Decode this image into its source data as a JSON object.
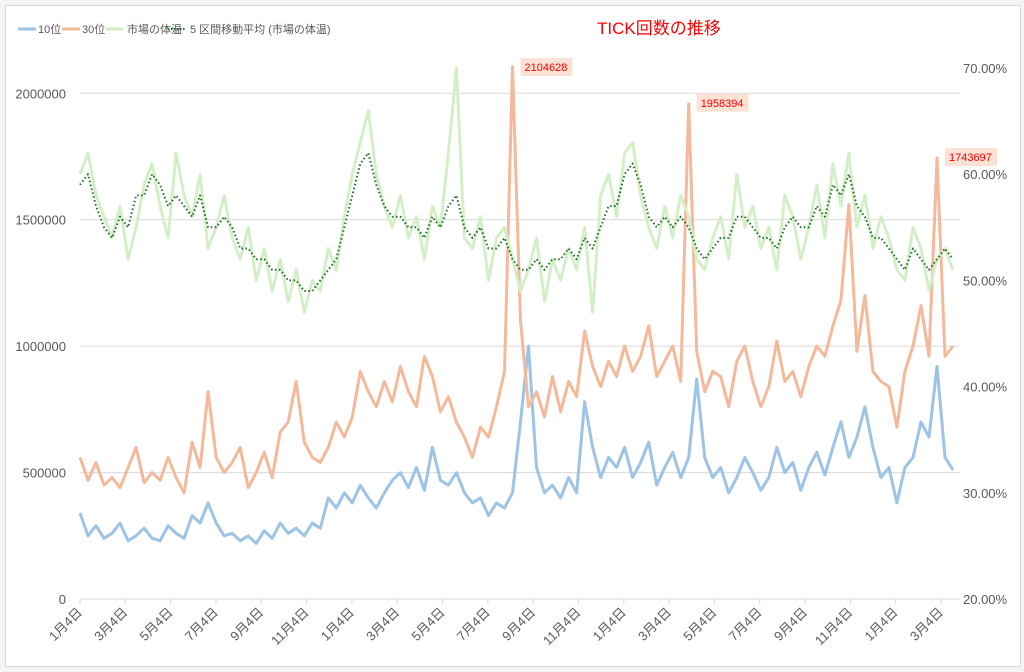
{
  "chart_data": {
    "type": "line",
    "title": "TICK回数の推移",
    "title_color": "#ff0000",
    "legend_position": "top-left",
    "legend": [
      "10位",
      "30位",
      "市場の体温",
      "5 区間移動平均 (市場の体温)"
    ],
    "x_tick_labels": [
      "1月4日",
      "3月4日",
      "5月4日",
      "7月4日",
      "9月4日",
      "11月4日",
      "1月4日",
      "3月4日",
      "5月4日",
      "7月4日",
      "9月4日",
      "11月4日",
      "1月4日",
      "3月4日",
      "5月4日",
      "7月4日",
      "9月4日",
      "11月4日",
      "1月4日",
      "3月4日"
    ],
    "y_left": {
      "min": 0,
      "max": 2100000,
      "ticks": [
        0,
        500000,
        1000000,
        1500000,
        2000000
      ],
      "tick_labels": [
        "0",
        "500000",
        "1000000",
        "1500000",
        "2000000"
      ]
    },
    "y_right": {
      "min": 20,
      "max": 70,
      "ticks": [
        20,
        30,
        40,
        50,
        60,
        70
      ],
      "tick_labels": [
        "20.00%",
        "30.00%",
        "40.00%",
        "50.00%",
        "60.00%",
        "70.00%"
      ]
    },
    "grid": true,
    "series": [
      {
        "name": "10位",
        "axis": "left",
        "color": "#9dc3e6",
        "unit": "thousands",
        "values": [
          340,
          250,
          290,
          240,
          260,
          300,
          230,
          250,
          280,
          240,
          230,
          290,
          260,
          240,
          330,
          300,
          380,
          300,
          250,
          260,
          230,
          250,
          220,
          270,
          240,
          300,
          260,
          280,
          250,
          300,
          280,
          400,
          360,
          420,
          380,
          450,
          400,
          360,
          420,
          470,
          500,
          440,
          520,
          430,
          600,
          470,
          450,
          500,
          420,
          380,
          400,
          330,
          380,
          360,
          420,
          700,
          1000,
          520,
          420,
          450,
          400,
          480,
          420,
          780,
          600,
          480,
          560,
          520,
          600,
          480,
          540,
          620,
          450,
          520,
          580,
          480,
          560,
          870,
          560,
          480,
          520,
          420,
          480,
          560,
          500,
          430,
          480,
          600,
          500,
          540,
          430,
          520,
          580,
          490,
          600,
          700,
          560,
          640,
          760,
          600,
          480,
          520,
          380,
          520,
          560,
          700,
          640,
          920,
          560,
          510
        ]
      },
      {
        "name": "30位",
        "axis": "left",
        "color": "#f4b99a",
        "unit": "thousands",
        "values": [
          560,
          470,
          540,
          450,
          480,
          440,
          520,
          600,
          460,
          500,
          470,
          560,
          480,
          420,
          620,
          520,
          820,
          560,
          500,
          540,
          600,
          440,
          500,
          580,
          480,
          660,
          700,
          860,
          620,
          560,
          540,
          600,
          700,
          640,
          720,
          900,
          820,
          760,
          860,
          780,
          920,
          820,
          760,
          960,
          880,
          740,
          800,
          700,
          640,
          560,
          680,
          640,
          760,
          900,
          2104.628,
          1100,
          760,
          820,
          720,
          880,
          740,
          860,
          800,
          1060,
          920,
          840,
          940,
          880,
          1000,
          900,
          960,
          1080,
          880,
          940,
          1000,
          860,
          1958.394,
          980,
          820,
          900,
          880,
          760,
          940,
          1000,
          860,
          760,
          840,
          1020,
          860,
          900,
          800,
          920,
          1000,
          960,
          1080,
          1180,
          1560,
          980,
          1200,
          900,
          860,
          840,
          680,
          900,
          1000,
          1160,
          960,
          1743.697,
          960,
          1000
        ]
      },
      {
        "name": "市場の体温",
        "axis": "right",
        "color": "#d4efc8",
        "unit": "percent",
        "values": [
          60,
          62,
          58,
          56,
          54,
          57,
          52,
          55,
          59,
          61,
          57,
          54,
          62,
          58,
          56,
          60,
          53,
          55,
          58,
          54,
          52,
          55,
          50,
          53,
          49,
          52,
          48,
          51,
          47,
          50,
          49,
          53,
          51,
          56,
          60,
          63,
          66,
          60,
          57,
          55,
          58,
          54,
          56,
          52,
          57,
          55,
          62,
          70,
          54,
          53,
          56,
          50,
          54,
          55,
          52,
          49,
          51,
          54,
          48,
          52,
          50,
          53,
          51,
          55,
          47,
          58,
          60,
          56,
          62,
          63,
          58,
          55,
          53,
          57,
          54,
          58,
          56,
          52,
          51,
          54,
          56,
          52,
          60,
          55,
          57,
          53,
          55,
          51,
          58,
          56,
          52,
          55,
          59,
          54,
          61,
          57,
          62,
          55,
          58,
          53,
          56,
          54,
          51,
          50,
          55,
          53,
          49,
          52,
          53,
          51
        ]
      },
      {
        "name": "5 区間移動平均 (市場の体温)",
        "axis": "right",
        "color": "#1f6e24",
        "unit": "percent",
        "values": [
          59,
          60,
          57,
          55,
          54,
          56,
          55,
          58,
          58,
          60,
          59,
          57,
          58,
          57,
          56,
          58,
          55,
          55,
          56,
          55,
          53,
          53,
          52,
          52,
          51,
          51,
          50,
          50,
          49,
          49,
          50,
          51,
          52,
          55,
          58,
          61,
          62,
          59,
          57,
          56,
          56,
          55,
          55,
          54,
          56,
          55,
          57,
          58,
          55,
          54,
          55,
          53,
          53,
          54,
          52,
          51,
          51,
          52,
          51,
          52,
          52,
          53,
          52,
          54,
          53,
          55,
          57,
          57,
          60,
          61,
          59,
          56,
          55,
          56,
          55,
          56,
          55,
          53,
          52,
          53,
          54,
          54,
          56,
          56,
          55,
          54,
          54,
          53,
          55,
          56,
          55,
          55,
          57,
          56,
          59,
          58,
          60,
          57,
          56,
          54,
          54,
          53,
          52,
          51,
          53,
          52,
          51,
          52,
          53,
          52
        ]
      }
    ],
    "data_labels": [
      {
        "series": "30位",
        "index": 54,
        "text": "2104628"
      },
      {
        "series": "30位",
        "index": 76,
        "text": "1958394"
      },
      {
        "series": "30位",
        "index": 107,
        "text": "1743697"
      }
    ],
    "data_label_style": {
      "fill": "#fbe2d5",
      "text_color": "#ff0000"
    }
  }
}
